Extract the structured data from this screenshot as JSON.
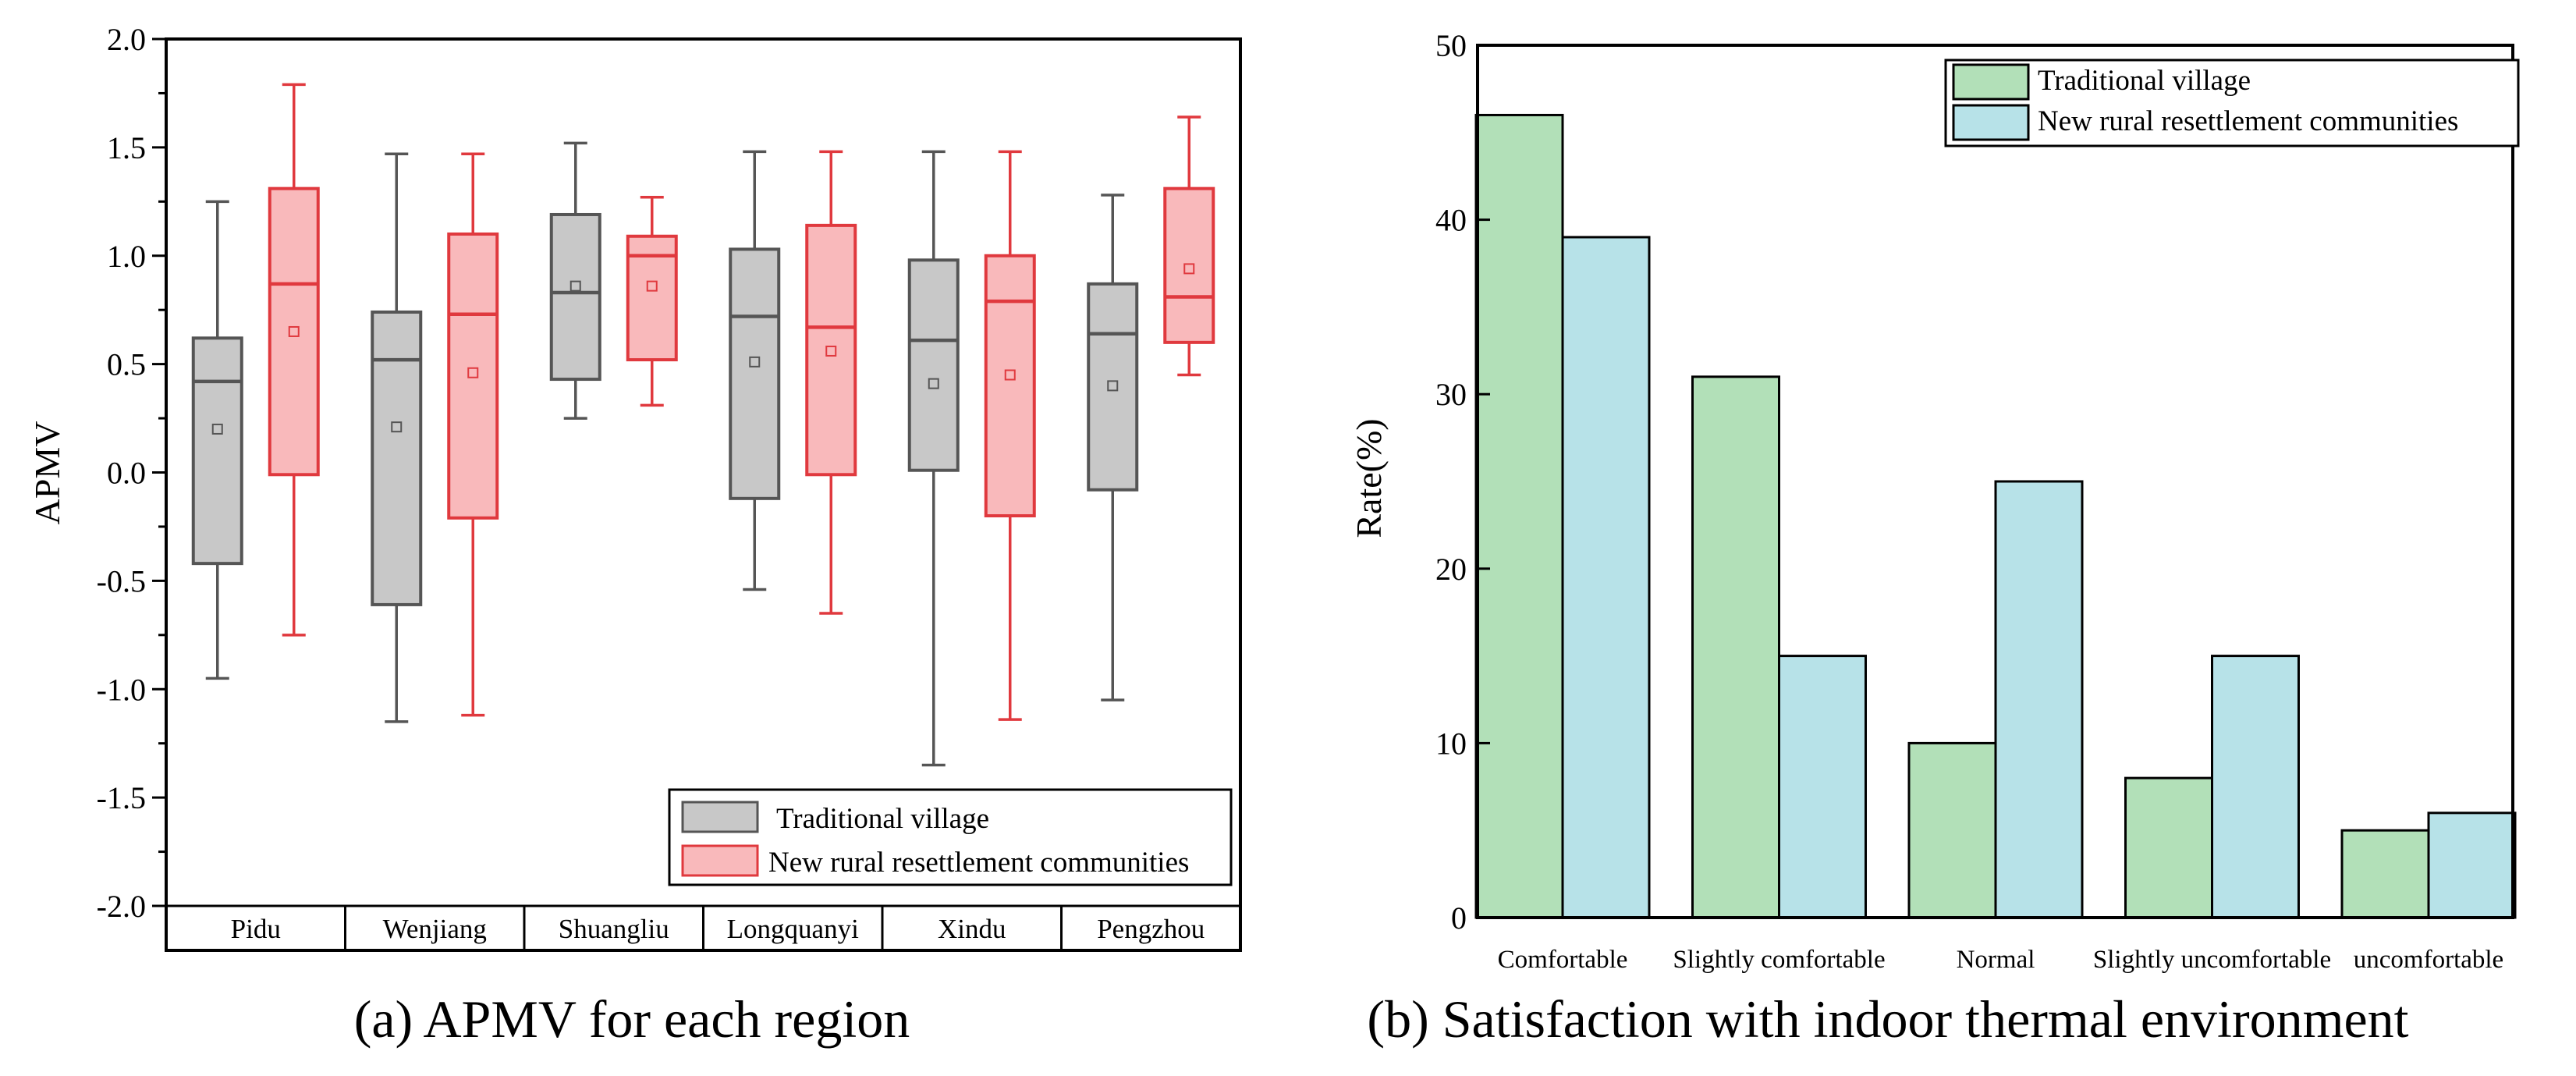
{
  "captions": {
    "a": "(a) APMV for each region",
    "b": "(b) Satisfaction with indoor thermal environment"
  },
  "colors": {
    "traditional_fill": "#c8c8c8",
    "traditional_stroke": "#555555",
    "new_fill": "#f9b9bb",
    "new_stroke": "#e0393e",
    "bar_green": "#b2e0b8",
    "bar_blue": "#b7e2e8"
  },
  "chart_data": [
    {
      "type": "box",
      "title": "",
      "ylabel": "APMV",
      "ylim": [
        -2.0,
        2.0
      ],
      "yticks": [
        "2.0",
        "1.5",
        "1.0",
        "0.5",
        "0.0",
        "-0.5",
        "-1.0",
        "-1.5",
        "-2.0"
      ],
      "categories": [
        "Pidu",
        "Wenjiang",
        "Shuangliu",
        "Longquanyi",
        "Xindu",
        "Pengzhou"
      ],
      "legend": {
        "position": "bottom-right",
        "entries": [
          "Traditional village",
          "New rural resettlement communities"
        ]
      },
      "series": [
        {
          "name": "Traditional village",
          "boxes": [
            {
              "min": -0.95,
              "q1": -0.42,
              "median": 0.42,
              "q3": 0.62,
              "max": 1.25,
              "mean": 0.2
            },
            {
              "min": -1.15,
              "q1": -0.61,
              "median": 0.52,
              "q3": 0.74,
              "max": 1.47,
              "mean": 0.21
            },
            {
              "min": 0.25,
              "q1": 0.43,
              "median": 0.83,
              "q3": 1.19,
              "max": 1.52,
              "mean": 0.86
            },
            {
              "min": -0.54,
              "q1": -0.12,
              "median": 0.72,
              "q3": 1.03,
              "max": 1.48,
              "mean": 0.51
            },
            {
              "min": -1.35,
              "q1": 0.01,
              "median": 0.61,
              "q3": 0.98,
              "max": 1.48,
              "mean": 0.41
            },
            {
              "min": -1.05,
              "q1": -0.08,
              "median": 0.64,
              "q3": 0.87,
              "max": 1.28,
              "mean": 0.4
            }
          ]
        },
        {
          "name": "New rural resettlement communities",
          "boxes": [
            {
              "min": -0.75,
              "q1": -0.01,
              "median": 0.87,
              "q3": 1.31,
              "max": 1.79,
              "mean": 0.65
            },
            {
              "min": -1.12,
              "q1": -0.21,
              "median": 0.73,
              "q3": 1.1,
              "max": 1.47,
              "mean": 0.46
            },
            {
              "min": 0.31,
              "q1": 0.52,
              "median": 1.0,
              "q3": 1.09,
              "max": 1.27,
              "mean": 0.86
            },
            {
              "min": -0.65,
              "q1": -0.01,
              "median": 0.67,
              "q3": 1.14,
              "max": 1.48,
              "mean": 0.56
            },
            {
              "min": -1.14,
              "q1": -0.2,
              "median": 0.79,
              "q3": 1.0,
              "max": 1.48,
              "mean": 0.45
            },
            {
              "min": 0.45,
              "q1": 0.6,
              "median": 0.81,
              "q3": 1.31,
              "max": 1.64,
              "mean": 0.94
            }
          ]
        }
      ]
    },
    {
      "type": "bar",
      "title": "",
      "xlabel": "",
      "ylabel": "Rate(%)",
      "ylim": [
        0,
        50
      ],
      "yticks": [
        "0",
        "10",
        "20",
        "30",
        "40",
        "50"
      ],
      "categories": [
        "Comfortable",
        "Slightly comfortable",
        "Normal",
        "Slightly uncomfortable",
        "uncomfortable"
      ],
      "legend": {
        "position": "top-right",
        "entries": [
          "Traditional village",
          "New rural resettlement communities"
        ]
      },
      "series": [
        {
          "name": "Traditional village",
          "values": [
            46,
            31,
            10,
            8,
            5
          ]
        },
        {
          "name": "New rural resettlement communities",
          "values": [
            39,
            15,
            25,
            15,
            6
          ]
        }
      ]
    }
  ]
}
